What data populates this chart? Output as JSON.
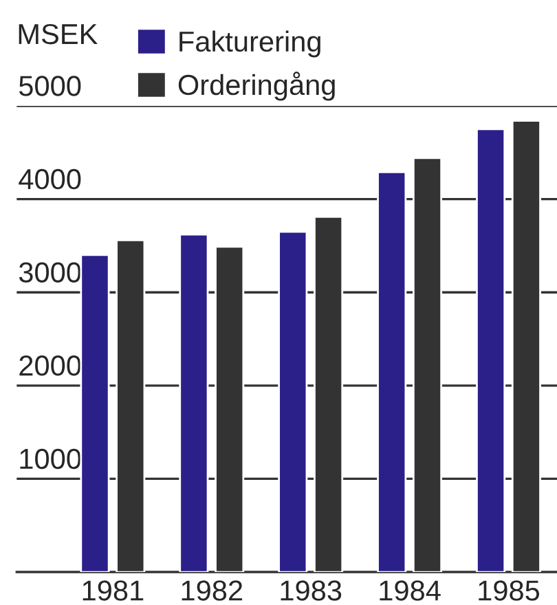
{
  "chart_data": {
    "type": "bar",
    "ylabel": "MSEK",
    "categories": [
      "1981",
      "1982",
      "1983",
      "1984",
      "1985"
    ],
    "series": [
      {
        "name": "Fakturering",
        "color": "#2b1f8a",
        "values": [
          3400,
          3620,
          3650,
          4290,
          4750
        ]
      },
      {
        "name": "Orderingång",
        "color": "#333333",
        "values": [
          3560,
          3490,
          3810,
          4440,
          4840
        ]
      }
    ],
    "ylim": [
      0,
      5000
    ],
    "yticks": [
      1000,
      2000,
      3000,
      4000,
      5000
    ],
    "grid": "y",
    "legend": "top"
  }
}
